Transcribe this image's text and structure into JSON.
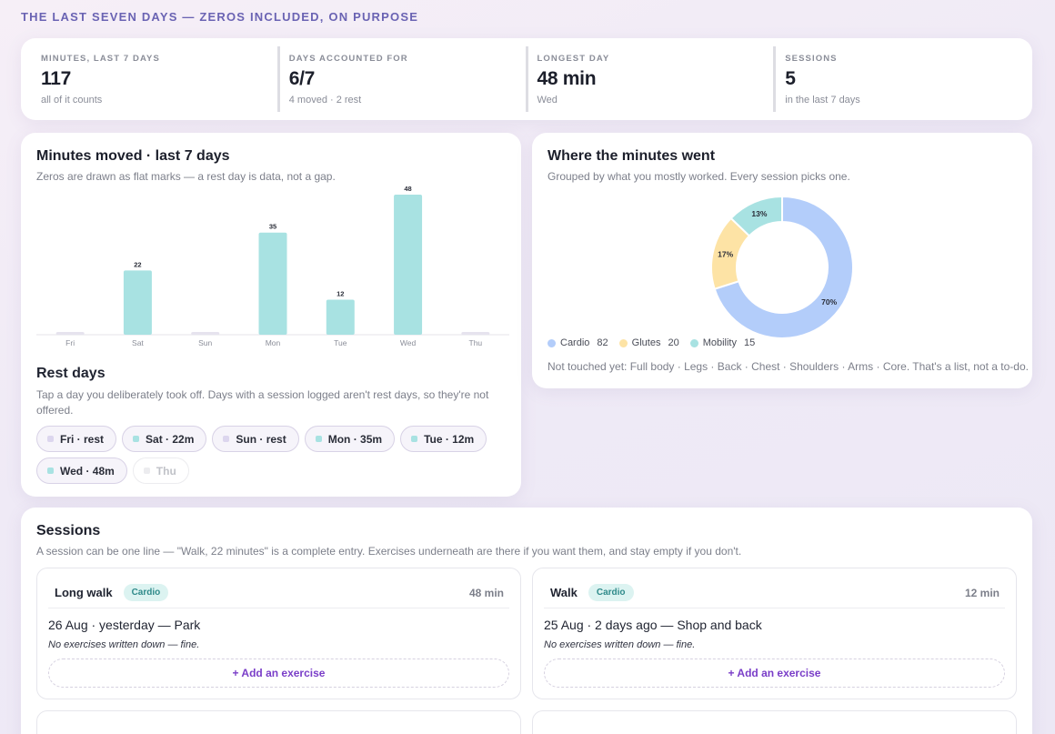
{
  "eyebrow": "THE LAST SEVEN DAYS — ZEROS INCLUDED, ON PURPOSE",
  "stats": [
    {
      "label": "MINUTES, LAST 7 DAYS",
      "value": "117",
      "sub": "all of it counts"
    },
    {
      "label": "DAYS ACCOUNTED FOR",
      "value": "6/7",
      "sub": "4 moved · 2 rest"
    },
    {
      "label": "LONGEST DAY",
      "value": "48 min",
      "sub": "Wed"
    },
    {
      "label": "SESSIONS",
      "value": "5",
      "sub": "in the last 7 days"
    }
  ],
  "minutes_card": {
    "title": "Minutes moved · last 7 days",
    "sub": "Zeros are drawn as flat marks — a rest day is data, not a gap."
  },
  "chart_data": [
    {
      "type": "bar",
      "categories": [
        "Fri",
        "Sat",
        "Sun",
        "Mon",
        "Tue",
        "Wed",
        "Thu"
      ],
      "values": [
        0,
        22,
        0,
        35,
        12,
        48,
        0
      ],
      "data_labels": [
        "",
        "22",
        "",
        "35",
        "12",
        "48",
        ""
      ],
      "title": "Minutes moved · last 7 days",
      "ylim": [
        0,
        50
      ],
      "grid": false,
      "color": "#a8e2e2",
      "zero_color": "#e6e3ee"
    },
    {
      "type": "pie",
      "donut": true,
      "categories": [
        "Cardio",
        "Glutes",
        "Mobility"
      ],
      "values": [
        82,
        20,
        15
      ],
      "percent_labels": [
        "70%",
        "17%",
        "13%"
      ],
      "colors": [
        "#b3cdfa",
        "#fde3a5",
        "#a8e2e2"
      ],
      "title": "Where the minutes went",
      "legend": "bottom-left"
    }
  ],
  "rest": {
    "title": "Rest days",
    "sub": "Tap a day you deliberately took off. Days with a session logged aren't rest days, so they're not offered.",
    "chips": [
      {
        "label": "Fri · rest",
        "color": "#dcd6ee",
        "disabled": false
      },
      {
        "label": "Sat · 22m",
        "color": "#a8e2e2",
        "disabled": false
      },
      {
        "label": "Sun · rest",
        "color": "#dcd6ee",
        "disabled": false
      },
      {
        "label": "Mon · 35m",
        "color": "#a8e2e2",
        "disabled": false
      },
      {
        "label": "Tue · 12m",
        "color": "#a8e2e2",
        "disabled": false
      },
      {
        "label": "Wed · 48m",
        "color": "#a8e2e2",
        "disabled": false
      },
      {
        "label": "Thu",
        "color": "#ececef",
        "disabled": true
      }
    ]
  },
  "where": {
    "title": "Where the minutes went",
    "sub": "Grouped by what you mostly worked. Every session picks one.",
    "legend": [
      {
        "name": "Cardio",
        "count": "82",
        "color": "#b3cdfa"
      },
      {
        "name": "Glutes",
        "count": "20",
        "color": "#fde3a5"
      },
      {
        "name": "Mobility",
        "count": "15",
        "color": "#a8e2e2"
      }
    ],
    "untouched": "Not touched yet: Full body · Legs · Back · Chest · Shoulders · Arms · Core. That's a list, not a to-do."
  },
  "sessions": {
    "title": "Sessions",
    "sub": "A session can be one line — \"Walk, 22 minutes\" is a complete entry. Exercises underneath are there if you want them, and stay empty if you don't.",
    "items": [
      {
        "name": "Long walk",
        "badge": "Cardio",
        "duration": "48 min",
        "date": "26 Aug · yesterday — Park",
        "note": "No exercises written down — fine.",
        "add_label": "+ Add an exercise"
      },
      {
        "name": "Walk",
        "badge": "Cardio",
        "duration": "12 min",
        "date": "25 Aug · 2 days ago — Shop and back",
        "note": "No exercises written down — fine.",
        "add_label": "+ Add an exercise"
      }
    ]
  }
}
